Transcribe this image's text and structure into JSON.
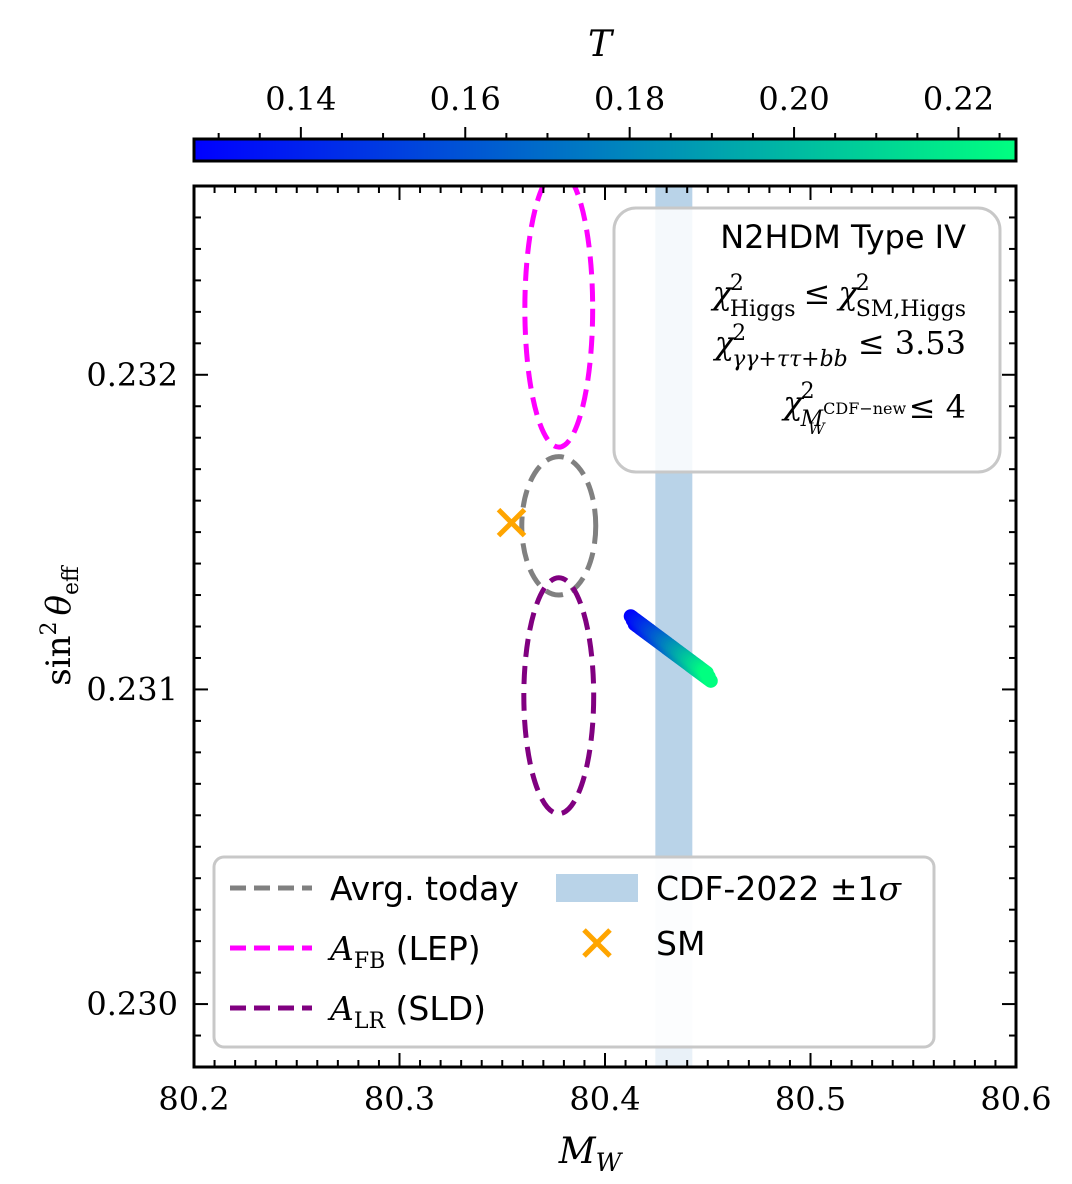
{
  "chart_data": {
    "type": "scatter",
    "colorbar": {
      "label": "T",
      "range": [
        0.127,
        0.227
      ],
      "ticks": [
        0.14,
        0.16,
        0.18,
        0.2,
        0.22
      ],
      "tick_labels": [
        "0.14",
        "0.16",
        "0.18",
        "0.20",
        "0.22"
      ],
      "colors": [
        "#0000ff",
        "#00ff80"
      ]
    },
    "x_axis": {
      "label": "M",
      "label_sub": "W",
      "range": [
        80.2,
        80.6
      ],
      "ticks": [
        80.2,
        80.3,
        80.4,
        80.5,
        80.6
      ],
      "tick_labels": [
        "80.2",
        "80.3",
        "80.4",
        "80.5",
        "80.6"
      ]
    },
    "y_axis": {
      "label": "sin",
      "label_sup": "2",
      "label_theta": "θ",
      "label_sub": "eff",
      "range": [
        0.2298,
        0.2326
      ],
      "ticks": [
        0.23,
        0.231,
        0.232
      ],
      "tick_labels": [
        "0.230",
        "0.231",
        "0.232"
      ]
    },
    "ellipses": [
      {
        "name": "Avrg. today",
        "cx": 80.3775,
        "cy": 0.23152,
        "rx": 0.018,
        "ry": 0.00022,
        "color": "#808080"
      },
      {
        "name": "A_FB (LEP)",
        "cx": 80.3775,
        "cy": 0.23221,
        "rx": 0.0165,
        "ry": 0.00044,
        "color": "#ff00ff"
      },
      {
        "name": "A_LR (SLD)",
        "cx": 80.3775,
        "cy": 0.23098,
        "rx": 0.017,
        "ry": 0.000375,
        "color": "#800080"
      }
    ],
    "band": {
      "name": "CDF-2022 ±1σ",
      "x_min": 80.4245,
      "x_max": 80.4425,
      "color": "#a8c8e2"
    },
    "sm_point": {
      "name": "SM",
      "x": 80.3545,
      "y": 0.23153,
      "color": "#ffa500"
    },
    "scan_points": {
      "x_start": 80.4135,
      "y_start": 0.23122,
      "T_start": 0.127,
      "x_end": 80.4505,
      "y_end": 0.23104,
      "T_end": 0.227,
      "count": 46
    }
  },
  "legend": {
    "items": [
      {
        "label": "Avrg. today",
        "color": "#808080"
      },
      {
        "label_math": "A",
        "label_sub": "FB",
        "label_rest": " (LEP)",
        "color": "#ff00ff"
      },
      {
        "label_math": "A",
        "label_sub": "LR",
        "label_rest": " (SLD)",
        "color": "#800080"
      },
      {
        "label": "CDF-2022 ±1",
        "label_sigma": "σ",
        "color": "#a8c8e2"
      },
      {
        "label": "SM",
        "color": "#ffa500"
      }
    ]
  },
  "info_box": {
    "title": "N2HDM Type IV",
    "line1_chi": "χ",
    "line1_sub": "Higgs",
    "line1_op": "≤",
    "line1_rhs_sub": "SM,Higgs",
    "line2_sub": "γγ+ττ+bb",
    "line2_rhs": "≤ 3.53",
    "line3_sub_m": "M",
    "line3_sub_w": "W",
    "line3_sup": "CDF−new",
    "line3_rhs": "≤ 4",
    "sq": "2"
  }
}
